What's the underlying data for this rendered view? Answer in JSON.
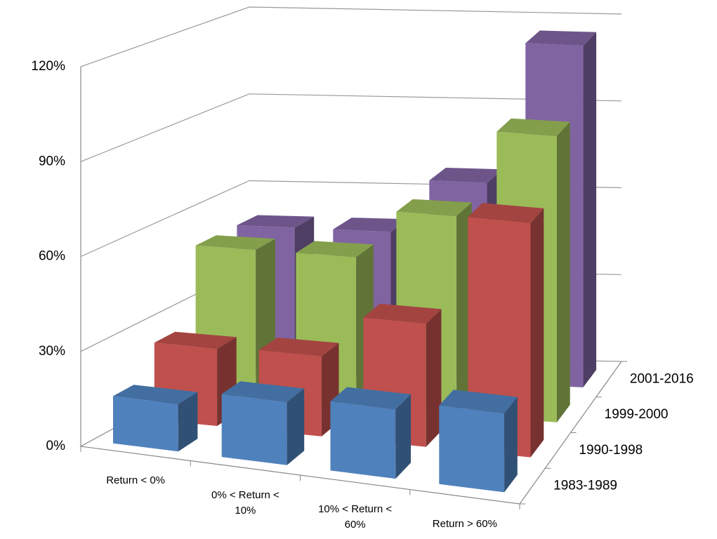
{
  "chart_data": {
    "type": "bar3d",
    "categories": [
      "Return < 0%",
      "0% < Return < 10%",
      "10% < Return < 60%",
      "Return > 60%"
    ],
    "series": [
      {
        "name": "1983-1989",
        "color": "#4f81bd",
        "values": [
          15,
          20,
          22,
          25
        ]
      },
      {
        "name": "1990-1998",
        "color": "#c0504d",
        "values": [
          25,
          26,
          40,
          76
        ]
      },
      {
        "name": "1999-2000",
        "color": "#9bbb59",
        "values": [
          50,
          50,
          66,
          95
        ]
      },
      {
        "name": "2001-2016",
        "color": "#8064a2",
        "values": [
          50,
          50,
          68,
          116
        ]
      }
    ],
    "ylim": [
      0,
      120
    ],
    "yticks": [
      {
        "value": 0,
        "label": "0%"
      },
      {
        "value": 30,
        "label": "30%"
      },
      {
        "value": 60,
        "label": "60%"
      },
      {
        "value": 90,
        "label": "90%"
      },
      {
        "value": 120,
        "label": "120%"
      }
    ],
    "grid": true
  }
}
